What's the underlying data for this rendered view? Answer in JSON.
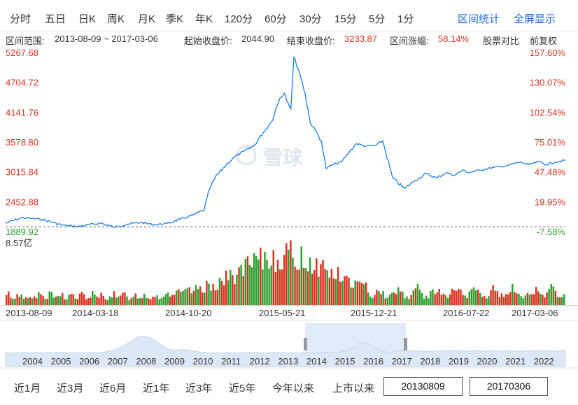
{
  "period_tabs": [
    "分时",
    "五日",
    "日K",
    "周K",
    "月K",
    "季K",
    "年K",
    "120分",
    "60分",
    "30分",
    "15分",
    "5分",
    "1分"
  ],
  "actions": {
    "range_stats": "区间统计",
    "fullscreen": "全屏显示"
  },
  "summary": {
    "range_label": "区间范围:",
    "range_value": "2013-08-09 ~ 2017-03-06",
    "start_label": "起始收盘价:",
    "start_value": "2044.90",
    "end_label": "结束收盘价:",
    "end_value": "3233.87",
    "change_label": "区间涨幅:",
    "change_value": "58.14%",
    "compare": "股票对比",
    "adjust": "前复权"
  },
  "watermark": "雪球",
  "range_buttons": [
    "近1月",
    "近3月",
    "近6月",
    "近1年",
    "近3年",
    "近5年",
    "今年以来",
    "上市以来"
  ],
  "date_from": "20130809",
  "date_to": "20170306",
  "colors": {
    "price_line": "#1a7de8",
    "up": "#d8321f",
    "down": "#2e9e2e",
    "axis_text_red": "#d8321f",
    "axis_text_green": "#2e9e2e",
    "tab_link": "#1a66d6",
    "navigator_fill": "#dde8f6",
    "navigator_selection": "#c8dbf4"
  },
  "chart_data": {
    "type": "line",
    "price_ticks": [
      "5267.68",
      "4704.72",
      "4141.76",
      "3578.80",
      "3015.84",
      "2452.88",
      "1889.92"
    ],
    "percent_ticks": [
      "157.60%",
      "130.07%",
      "102.54%",
      "75.01%",
      "47.48%",
      "19.95%",
      "-7.58%"
    ],
    "ylim": [
      1889.92,
      5267.68
    ],
    "base_price": 2044.9,
    "date_ticks": [
      "2013-08-09",
      "2014-03-18",
      "2014-10-20",
      "2015-05-21",
      "2015-12-21",
      "2016-07-22",
      "2017-03-06"
    ],
    "price_series": {
      "x": [
        "2013-08-09",
        "2013-09-15",
        "2013-11-01",
        "2013-12-20",
        "2014-01-25",
        "2014-03-18",
        "2014-04-20",
        "2014-05-20",
        "2014-06-20",
        "2014-07-20",
        "2014-08-20",
        "2014-09-20",
        "2014-10-20",
        "2014-11-15",
        "2014-11-28",
        "2014-12-10",
        "2015-01-05",
        "2015-01-25",
        "2015-02-15",
        "2015-03-10",
        "2015-04-01",
        "2015-04-20",
        "2015-05-10",
        "2015-05-21",
        "2015-06-05",
        "2015-06-12",
        "2015-06-25",
        "2015-07-08",
        "2015-07-20",
        "2015-08-01",
        "2015-08-15",
        "2015-08-26",
        "2015-09-10",
        "2015-10-01",
        "2015-10-20",
        "2015-11-05",
        "2015-11-25",
        "2015-12-21",
        "2016-01-05",
        "2016-01-28",
        "2016-02-25",
        "2016-03-20",
        "2016-04-15",
        "2016-05-10",
        "2016-06-01",
        "2016-06-20",
        "2016-07-10",
        "2016-07-22",
        "2016-08-20",
        "2016-09-20",
        "2016-10-20",
        "2016-11-20",
        "2016-12-10",
        "2017-01-05",
        "2017-01-20",
        "2017-02-10",
        "2017-03-06"
      ],
      "y": [
        2044.9,
        2150,
        2120,
        2010,
        1985,
        2050,
        1970,
        2030,
        2060,
        2020,
        2040,
        2120,
        2200,
        2300,
        2700,
        2900,
        3150,
        3300,
        3400,
        3500,
        3750,
        3950,
        4400,
        4500,
        4200,
        5178,
        4900,
        4500,
        3950,
        3800,
        3600,
        3080,
        3150,
        3200,
        3400,
        3550,
        3500,
        3520,
        3600,
        2900,
        2700,
        2850,
        2980,
        2900,
        3000,
        2950,
        3050,
        3000,
        3050,
        3100,
        3130,
        3200,
        3150,
        3210,
        3150,
        3200,
        3233.87
      ]
    },
    "volume": {
      "label": "8.57亿",
      "max": 857000000,
      "unit": "shares",
      "bar_count": 260
    },
    "navigator": {
      "years": [
        "2004",
        "2005",
        "2006",
        "2007",
        "2008",
        "2009",
        "2010",
        "2011",
        "2012",
        "2013",
        "2014",
        "2015",
        "2016",
        "2017",
        "2018",
        "2019",
        "2020",
        "2021",
        "2022"
      ],
      "selection_start": "2013-08-09",
      "selection_end": "2017-03-06"
    }
  }
}
